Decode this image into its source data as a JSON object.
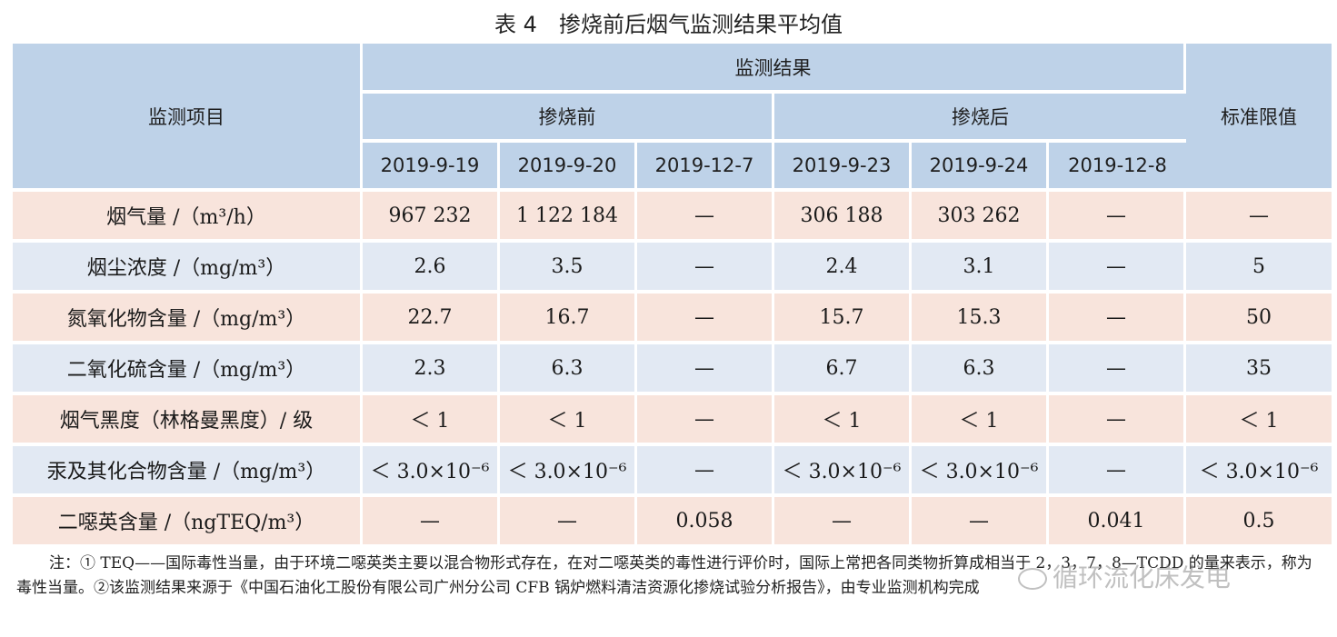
{
  "title": "表 4　掺烧前后烟气监测结果平均值",
  "headers": {
    "item": "监测项目",
    "results": "监测结果",
    "before": "掺烧前",
    "after": "掺烧后",
    "limit": "标准限值",
    "dates": [
      "2019-9-19",
      "2019-9-20",
      "2019-12-7",
      "2019-9-23",
      "2019-9-24",
      "2019-12-8"
    ]
  },
  "rows": [
    {
      "item": "烟气量 /（m³/h）",
      "values": [
        "967 232",
        "1 122 184",
        "—",
        "306 188",
        "303 262",
        "—"
      ],
      "limit": "—"
    },
    {
      "item": "烟尘浓度 /（mg/m³）",
      "values": [
        "2.6",
        "3.5",
        "—",
        "2.4",
        "3.1",
        "—"
      ],
      "limit": "5"
    },
    {
      "item": "氮氧化物含量 /（mg/m³）",
      "values": [
        "22.7",
        "16.7",
        "—",
        "15.7",
        "15.3",
        "—"
      ],
      "limit": "50"
    },
    {
      "item": "二氧化硫含量 /（mg/m³）",
      "values": [
        "2.3",
        "6.3",
        "—",
        "6.7",
        "6.3",
        "—"
      ],
      "limit": "35"
    },
    {
      "item": "烟气黑度（林格曼黑度）/ 级",
      "values": [
        "＜ 1",
        "＜ 1",
        "—",
        "＜ 1",
        "＜ 1",
        "—"
      ],
      "limit": "＜ 1"
    },
    {
      "item": "汞及其化合物含量 /（mg/m³）",
      "values": [
        "＜ 3.0×10⁻⁶",
        "＜ 3.0×10⁻⁶",
        "—",
        "＜ 3.0×10⁻⁶",
        "＜ 3.0×10⁻⁶",
        "—"
      ],
      "limit": "＜ 3.0×10⁻⁶"
    },
    {
      "item": "二噁英含量 /（ngTEQ/m³）",
      "values": [
        "—",
        "—",
        "0.058",
        "—",
        "—",
        "0.041"
      ],
      "limit": "0.5"
    }
  ],
  "note": "注：① TEQ——国际毒性当量，由于环境二噁英类主要以混合物形式存在，在对二噁英类的毒性进行评价时，国际上常把各同类物折算成相当于 2，3，7，8—TCDD 的量来表示，称为毒性当量。②该监测结果来源于《中国石油化工股份有限公司广州分公司 CFB 锅炉燃料清洁资源化掺烧试验分析报告》，由专业监测机构完成",
  "watermark": "循环流化床发电"
}
